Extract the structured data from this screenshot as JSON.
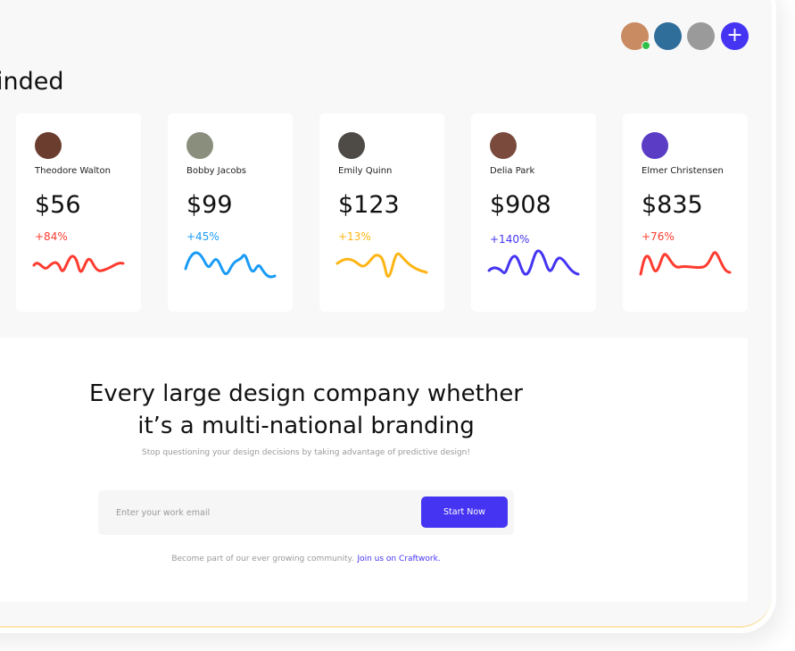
{
  "header": {
    "avatars": [
      {
        "name": "user-1",
        "color": "#c98b62",
        "online": true
      },
      {
        "name": "user-2",
        "color": "#2f6e9a"
      },
      {
        "name": "user-3",
        "color": "#9a9a9a"
      }
    ],
    "add_label": "+"
  },
  "section": {
    "heading": "inded"
  },
  "cards": [
    {
      "name": "Theodore Walton",
      "amount": "$56",
      "change": "+84%",
      "color": "#ff3b2f",
      "avatar_color": "#6b3d2e"
    },
    {
      "name": "Bobby Jacobs",
      "amount": "$99",
      "change": "+45%",
      "color": "#1a9bf5",
      "avatar_color": "#8a8f7d"
    },
    {
      "name": "Emily Quinn",
      "amount": "$123",
      "change": "+13%",
      "color": "#fdb515",
      "avatar_color": "#4e4b47"
    },
    {
      "name": "Delia Park",
      "amount": "$908",
      "change": "+140%",
      "color": "#4535f2",
      "avatar_color": "#7a4a3d"
    },
    {
      "name": "Elmer Christensen",
      "amount": "$835",
      "change": "+76%",
      "color": "#ff3b2f",
      "avatar_color": "#5b3cc4"
    }
  ],
  "cta": {
    "title_line1": "Every large design company whether",
    "title_line2": "it’s a multi-national branding",
    "subtitle": "Stop questioning your design decisions by taking advantage of predictive design!",
    "email_placeholder": "Enter your work email",
    "button": "Start Now",
    "footer_text": "Become part of our ever growing community.",
    "footer_link": "Join us on Craftwork."
  },
  "colors": {
    "accent": "#4535f2",
    "panel": "#f8f8f8"
  }
}
